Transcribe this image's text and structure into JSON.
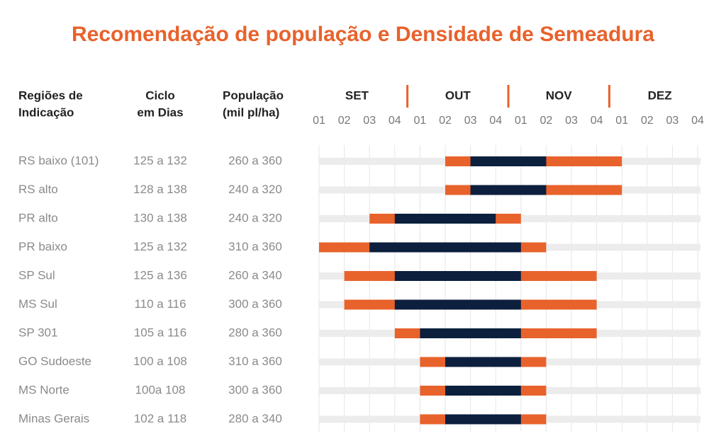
{
  "title": "Recomendação de população e Densidade de Semeadura",
  "headers": [
    [
      "Regiões de",
      "Indicação"
    ],
    [
      "Ciclo",
      "em Dias"
    ],
    [
      "População",
      "(mil pl/ha)"
    ]
  ],
  "months": [
    "SET",
    "OUT",
    "NOV",
    "DEZ"
  ],
  "weeks": [
    "01",
    "02",
    "03",
    "04"
  ],
  "xlim": [
    0,
    15
  ],
  "xticks": [
    0,
    1,
    2,
    3,
    4,
    5,
    6,
    7,
    8,
    9,
    10,
    11,
    12,
    13,
    14,
    15
  ],
  "colors": {
    "edge": "#e8622c",
    "core": "#0c1f3d"
  },
  "rows": [
    {
      "region": "RS baixo (101)",
      "cycle": "125 a 132",
      "population": "260 a 360",
      "bounds": [
        5,
        6,
        9,
        12
      ]
    },
    {
      "region": "RS alto",
      "cycle": "128 a 138",
      "population": "240 a 320",
      "bounds": [
        5,
        6,
        9,
        12
      ]
    },
    {
      "region": "PR alto",
      "cycle": "130 a 138",
      "population": "240 a 320",
      "bounds": [
        2,
        3,
        7,
        8
      ]
    },
    {
      "region": "PR baixo",
      "cycle": "125 a 132",
      "population": "310 a 360",
      "bounds": [
        0,
        2,
        8,
        9
      ]
    },
    {
      "region": "SP Sul",
      "cycle": "125 a 136",
      "population": "260 a 340",
      "bounds": [
        1,
        3,
        8,
        11
      ]
    },
    {
      "region": "MS Sul",
      "cycle": "110 a 116",
      "population": "300 a 360",
      "bounds": [
        1,
        3,
        8,
        11
      ]
    },
    {
      "region": "SP 301",
      "cycle": "105 a 116",
      "population": "280 a 360",
      "bounds": [
        3,
        4,
        8,
        11
      ]
    },
    {
      "region": "GO Sudoeste",
      "cycle": "100 a 108",
      "population": "310 a 360",
      "bounds": [
        4,
        5,
        8,
        9
      ]
    },
    {
      "region": "MS Norte",
      "cycle": "100a 108",
      "population": "300 a 360",
      "bounds": [
        4,
        5,
        8,
        9
      ]
    },
    {
      "region": "Minas Gerais",
      "cycle": "102 a 118",
      "population": "280 a 340",
      "bounds": [
        4,
        5,
        8,
        9
      ]
    }
  ]
}
